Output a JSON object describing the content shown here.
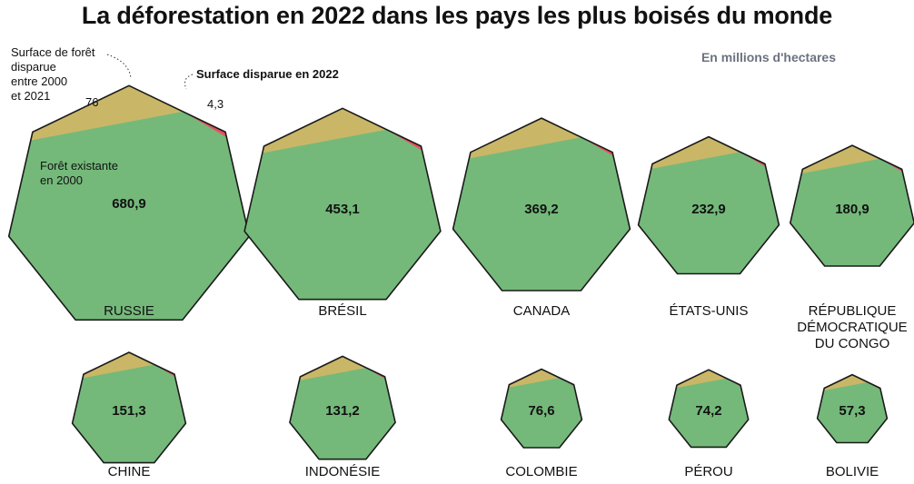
{
  "title": "La déforestation en 2022 dans les pays les plus boisés du monde",
  "unit_note": "En millions d'hectares",
  "annotations": {
    "lost_2000_2021_lines": [
      "Surface de forêt",
      "disparue",
      "entre 2000",
      "et 2021"
    ],
    "lost_2022": "Surface disparue en 2022",
    "existing_2000_lines": [
      "Forêt existante",
      "en 2000"
    ],
    "russia_lost_2000_2021_value": "76",
    "russia_lost_2022_value": "4,3"
  },
  "colors": {
    "existing": "#74b97a",
    "lost_2000_2021": "#c9b767",
    "lost_2022": "#e8505f",
    "outline": "#1a1a1a"
  },
  "chart_data": {
    "type": "heptagon-area",
    "unit": "En millions d'hectares",
    "countries": [
      {
        "name": "RUSSIE",
        "existing_2000": 680.9,
        "value_label": "680,9"
      },
      {
        "name": "BRÉSIL",
        "existing_2000": 453.1,
        "value_label": "453,1"
      },
      {
        "name": "CANADA",
        "existing_2000": 369.2,
        "value_label": "369,2"
      },
      {
        "name": "ÉTATS-UNIS",
        "existing_2000": 232.9,
        "value_label": "232,9"
      },
      {
        "name": "RÉPUBLIQUE DÉMOCRATIQUE DU CONGO",
        "label_lines": [
          "RÉPUBLIQUE",
          "DÉMOCRATIQUE",
          "DU CONGO"
        ],
        "existing_2000": 180.9,
        "value_label": "180,9"
      },
      {
        "name": "CHINE",
        "existing_2000": 151.3,
        "value_label": "151,3"
      },
      {
        "name": "INDONÉSIE",
        "existing_2000": 131.2,
        "value_label": "131,2"
      },
      {
        "name": "COLOMBIE",
        "existing_2000": 76.6,
        "value_label": "76,6"
      },
      {
        "name": "PÉROU",
        "existing_2000": 74.2,
        "value_label": "74,2"
      },
      {
        "name": "BOLIVIE",
        "existing_2000": 57.3,
        "value_label": "57,3"
      }
    ],
    "russia_detail": {
      "lost_2000_2021": 76,
      "lost_2022": 4.3
    }
  }
}
